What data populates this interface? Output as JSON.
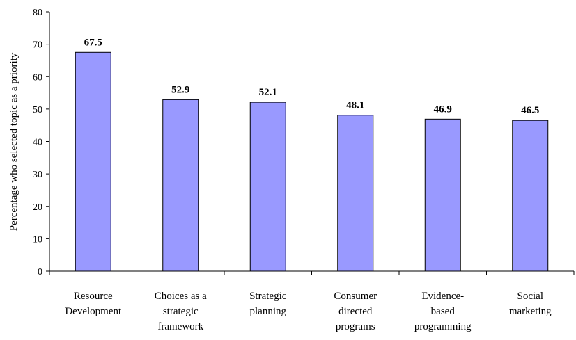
{
  "chart_data": {
    "type": "bar",
    "title": "",
    "xlabel": "",
    "ylabel": "Percentage who selected topic as a priority",
    "ylim": [
      0,
      80
    ],
    "yticks": [
      0,
      10,
      20,
      30,
      40,
      50,
      60,
      70,
      80
    ],
    "grid": false,
    "categories": [
      [
        "Resource",
        "Development"
      ],
      [
        "Choices as a",
        "strategic",
        "framework"
      ],
      [
        "Strategic",
        "planning"
      ],
      [
        "Consumer",
        "directed",
        "programs"
      ],
      [
        "Evidence-",
        "based",
        "programming"
      ],
      [
        "Social",
        "marketing"
      ]
    ],
    "values": [
      67.5,
      52.9,
      52.1,
      48.1,
      46.9,
      46.5
    ],
    "value_labels": [
      "67.5",
      "52.9",
      "52.1",
      "48.1",
      "46.9",
      "46.5"
    ],
    "colors": {
      "bar_fill": "#9999ff",
      "bar_stroke": "#000000",
      "axis": "#000000"
    }
  }
}
